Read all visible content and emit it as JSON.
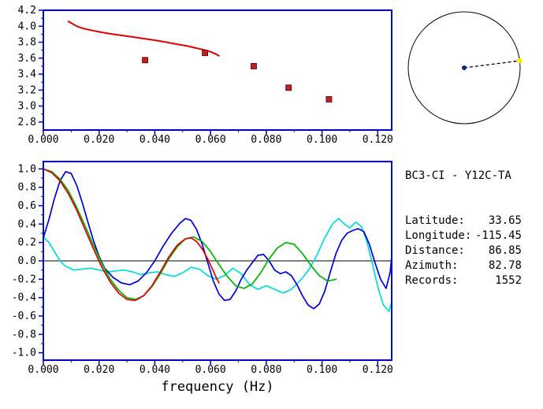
{
  "page": {
    "background": "#ffffff"
  },
  "station_info": {
    "title": "BC3-CI - Y12C-TA",
    "rows": [
      {
        "label": "Latitude:",
        "value": "33.65"
      },
      {
        "label": "Longitude:",
        "value": "-115.45"
      },
      {
        "label": "Distance:",
        "value": "86.85"
      },
      {
        "label": "Azimuth:",
        "value": "82.78"
      },
      {
        "label": "Records:",
        "value": "1552"
      }
    ]
  },
  "compass": {
    "azimuth_deg": 82.78,
    "circle_color": "#000000",
    "center_dot_color": "#102878",
    "line_color": "#000000",
    "end_dot_color": "#ffe400"
  },
  "chart_data": [
    {
      "id": "dispersion",
      "type": "line",
      "title": "",
      "xlabel": "",
      "ylabel": "",
      "xlim": [
        0,
        0.125
      ],
      "ylim": [
        2.7,
        4.2
      ],
      "xticks": [
        0,
        0.02,
        0.04,
        0.06,
        0.08,
        0.1,
        0.12
      ],
      "xtick_labels": [
        "0.000",
        "0.020",
        "0.040",
        "0.060",
        "0.080",
        "0.100",
        "0.120"
      ],
      "yticks": [
        2.8,
        3.0,
        3.2,
        3.4,
        3.6,
        3.8,
        4.0,
        4.2
      ],
      "ytick_labels": [
        "2.8",
        "3.0",
        "3.2",
        "3.4",
        "3.6",
        "3.8",
        "4.0",
        "4.2"
      ],
      "xminor": 0.01,
      "yminor": 0.1,
      "axis_color": "#0000c8",
      "grid": false,
      "zero_line": false,
      "series": [
        {
          "name": "model-dispersion-curve",
          "color": "#e00000",
          "width": 2,
          "points": [
            [
              0.009,
              4.06
            ],
            [
              0.01,
              4.04
            ],
            [
              0.012,
              4.0
            ],
            [
              0.014,
              3.975
            ],
            [
              0.017,
              3.95
            ],
            [
              0.02,
              3.93
            ],
            [
              0.024,
              3.905
            ],
            [
              0.028,
              3.885
            ],
            [
              0.032,
              3.865
            ],
            [
              0.036,
              3.845
            ],
            [
              0.04,
              3.825
            ],
            [
              0.044,
              3.8
            ],
            [
              0.048,
              3.775
            ],
            [
              0.052,
              3.75
            ],
            [
              0.055,
              3.725
            ],
            [
              0.057,
              3.71
            ],
            [
              0.059,
              3.69
            ],
            [
              0.06,
              3.68
            ],
            [
              0.061,
              3.665
            ],
            [
              0.062,
              3.65
            ],
            [
              0.063,
              3.63
            ]
          ]
        }
      ],
      "markers": {
        "name": "measured-phase-velocity-points",
        "shape": "square",
        "color": "#c41e1e",
        "size": 7,
        "points": [
          [
            0.0365,
            3.575
          ],
          [
            0.058,
            3.665
          ],
          [
            0.0755,
            3.5
          ],
          [
            0.088,
            3.23
          ],
          [
            0.1025,
            3.085
          ]
        ]
      }
    },
    {
      "id": "coherence",
      "type": "line",
      "title": "",
      "xlabel": "frequency (Hz)",
      "ylabel": "",
      "xlim": [
        0,
        0.125
      ],
      "ylim": [
        -1.08,
        1.08
      ],
      "xticks": [
        0,
        0.02,
        0.04,
        0.06,
        0.08,
        0.1,
        0.12
      ],
      "xtick_labels": [
        "0.000",
        "0.020",
        "0.040",
        "0.060",
        "0.080",
        "0.100",
        "0.120"
      ],
      "yticks": [
        -1.0,
        -0.8,
        -0.6,
        -0.4,
        -0.2,
        0.0,
        0.2,
        0.4,
        0.6,
        0.8,
        1.0
      ],
      "ytick_labels": [
        "-1.0",
        "-0.8",
        "-0.6",
        "-0.4",
        "-0.2",
        "0.0",
        "0.2",
        "0.4",
        "0.6",
        "0.8",
        "1.0"
      ],
      "xminor": 0.01,
      "yminor": 0.1,
      "axis_color": "#0000c8",
      "grid": false,
      "zero_line": true,
      "series": [
        {
          "name": "cyan-trace",
          "color": "#00dcdc",
          "width": 1.7,
          "points": [
            [
              0,
              0.26
            ],
            [
              0.002,
              0.2
            ],
            [
              0.004,
              0.1
            ],
            [
              0.006,
              0.0
            ],
            [
              0.008,
              -0.06
            ],
            [
              0.011,
              -0.1
            ],
            [
              0.014,
              -0.09
            ],
            [
              0.017,
              -0.08
            ],
            [
              0.02,
              -0.1
            ],
            [
              0.023,
              -0.12
            ],
            [
              0.026,
              -0.11
            ],
            [
              0.029,
              -0.1
            ],
            [
              0.032,
              -0.12
            ],
            [
              0.035,
              -0.15
            ],
            [
              0.038,
              -0.13
            ],
            [
              0.041,
              -0.12
            ],
            [
              0.044,
              -0.15
            ],
            [
              0.047,
              -0.17
            ],
            [
              0.05,
              -0.13
            ],
            [
              0.053,
              -0.07
            ],
            [
              0.056,
              -0.09
            ],
            [
              0.059,
              -0.16
            ],
            [
              0.062,
              -0.2
            ],
            [
              0.065,
              -0.16
            ],
            [
              0.068,
              -0.08
            ],
            [
              0.071,
              -0.14
            ],
            [
              0.074,
              -0.26
            ],
            [
              0.077,
              -0.31
            ],
            [
              0.08,
              -0.27
            ],
            [
              0.083,
              -0.31
            ],
            [
              0.086,
              -0.35
            ],
            [
              0.089,
              -0.31
            ],
            [
              0.092,
              -0.22
            ],
            [
              0.095,
              -0.11
            ],
            [
              0.098,
              0.05
            ],
            [
              0.101,
              0.25
            ],
            [
              0.104,
              0.41
            ],
            [
              0.106,
              0.46
            ],
            [
              0.108,
              0.4
            ],
            [
              0.11,
              0.36
            ],
            [
              0.112,
              0.42
            ],
            [
              0.114,
              0.38
            ],
            [
              0.116,
              0.22
            ],
            [
              0.118,
              -0.02
            ],
            [
              0.12,
              -0.28
            ],
            [
              0.122,
              -0.48
            ],
            [
              0.124,
              -0.55
            ],
            [
              0.125,
              -0.45
            ]
          ]
        },
        {
          "name": "observed-blue-trace",
          "color": "#0000e0",
          "width": 1.7,
          "points": [
            [
              0,
              0.25
            ],
            [
              0.002,
              0.45
            ],
            [
              0.004,
              0.68
            ],
            [
              0.006,
              0.87
            ],
            [
              0.008,
              0.97
            ],
            [
              0.01,
              0.95
            ],
            [
              0.012,
              0.82
            ],
            [
              0.014,
              0.63
            ],
            [
              0.016,
              0.42
            ],
            [
              0.018,
              0.22
            ],
            [
              0.02,
              0.05
            ],
            [
              0.022,
              -0.08
            ],
            [
              0.025,
              -0.18
            ],
            [
              0.028,
              -0.24
            ],
            [
              0.031,
              -0.26
            ],
            [
              0.034,
              -0.22
            ],
            [
              0.037,
              -0.13
            ],
            [
              0.04,
              0.0
            ],
            [
              0.043,
              0.16
            ],
            [
              0.046,
              0.3
            ],
            [
              0.049,
              0.41
            ],
            [
              0.051,
              0.46
            ],
            [
              0.053,
              0.44
            ],
            [
              0.055,
              0.34
            ],
            [
              0.057,
              0.18
            ],
            [
              0.059,
              -0.02
            ],
            [
              0.061,
              -0.22
            ],
            [
              0.063,
              -0.36
            ],
            [
              0.065,
              -0.43
            ],
            [
              0.067,
              -0.42
            ],
            [
              0.069,
              -0.33
            ],
            [
              0.071,
              -0.2
            ],
            [
              0.073,
              -0.1
            ],
            [
              0.075,
              -0.02
            ],
            [
              0.077,
              0.06
            ],
            [
              0.079,
              0.07
            ],
            [
              0.081,
              0.0
            ],
            [
              0.083,
              -0.1
            ],
            [
              0.085,
              -0.14
            ],
            [
              0.087,
              -0.12
            ],
            [
              0.089,
              -0.16
            ],
            [
              0.091,
              -0.26
            ],
            [
              0.093,
              -0.38
            ],
            [
              0.095,
              -0.48
            ],
            [
              0.097,
              -0.52
            ],
            [
              0.099,
              -0.47
            ],
            [
              0.101,
              -0.33
            ],
            [
              0.103,
              -0.12
            ],
            [
              0.105,
              0.08
            ],
            [
              0.107,
              0.22
            ],
            [
              0.109,
              0.3
            ],
            [
              0.111,
              0.33
            ],
            [
              0.113,
              0.35
            ],
            [
              0.115,
              0.32
            ],
            [
              0.117,
              0.18
            ],
            [
              0.119,
              -0.02
            ],
            [
              0.121,
              -0.2
            ],
            [
              0.123,
              -0.3
            ],
            [
              0.1245,
              -0.12
            ],
            [
              0.125,
              0.05
            ]
          ]
        },
        {
          "name": "predicted-green-trace",
          "color": "#00b400",
          "width": 1.7,
          "points": [
            [
              0,
              1.0
            ],
            [
              0.003,
              0.97
            ],
            [
              0.006,
              0.89
            ],
            [
              0.009,
              0.76
            ],
            [
              0.012,
              0.58
            ],
            [
              0.015,
              0.38
            ],
            [
              0.018,
              0.17
            ],
            [
              0.021,
              -0.03
            ],
            [
              0.024,
              -0.2
            ],
            [
              0.027,
              -0.32
            ],
            [
              0.03,
              -0.4
            ],
            [
              0.033,
              -0.42
            ],
            [
              0.036,
              -0.38
            ],
            [
              0.039,
              -0.28
            ],
            [
              0.042,
              -0.14
            ],
            [
              0.045,
              0.02
            ],
            [
              0.048,
              0.15
            ],
            [
              0.051,
              0.24
            ],
            [
              0.054,
              0.26
            ],
            [
              0.057,
              0.21
            ],
            [
              0.06,
              0.1
            ],
            [
              0.063,
              -0.04
            ],
            [
              0.066,
              -0.17
            ],
            [
              0.069,
              -0.27
            ],
            [
              0.072,
              -0.3
            ],
            [
              0.075,
              -0.25
            ],
            [
              0.078,
              -0.13
            ],
            [
              0.081,
              0.02
            ],
            [
              0.084,
              0.14
            ],
            [
              0.087,
              0.2
            ],
            [
              0.09,
              0.18
            ],
            [
              0.093,
              0.08
            ],
            [
              0.096,
              -0.05
            ],
            [
              0.099,
              -0.16
            ],
            [
              0.102,
              -0.22
            ],
            [
              0.105,
              -0.2
            ]
          ]
        },
        {
          "name": "fitted-red-trace",
          "color": "#e00000",
          "width": 1.7,
          "points": [
            [
              0,
              1.0
            ],
            [
              0.003,
              0.96
            ],
            [
              0.006,
              0.87
            ],
            [
              0.009,
              0.73
            ],
            [
              0.012,
              0.55
            ],
            [
              0.015,
              0.34
            ],
            [
              0.018,
              0.13
            ],
            [
              0.021,
              -0.07
            ],
            [
              0.024,
              -0.23
            ],
            [
              0.027,
              -0.35
            ],
            [
              0.03,
              -0.42
            ],
            [
              0.033,
              -0.43
            ],
            [
              0.036,
              -0.38
            ],
            [
              0.039,
              -0.27
            ],
            [
              0.042,
              -0.12
            ],
            [
              0.045,
              0.04
            ],
            [
              0.048,
              0.17
            ],
            [
              0.051,
              0.24
            ],
            [
              0.053,
              0.25
            ],
            [
              0.055,
              0.21
            ],
            [
              0.057,
              0.13
            ],
            [
              0.059,
              0.02
            ],
            [
              0.061,
              -0.11
            ],
            [
              0.062,
              -0.18
            ],
            [
              0.063,
              -0.24
            ]
          ]
        }
      ]
    }
  ]
}
